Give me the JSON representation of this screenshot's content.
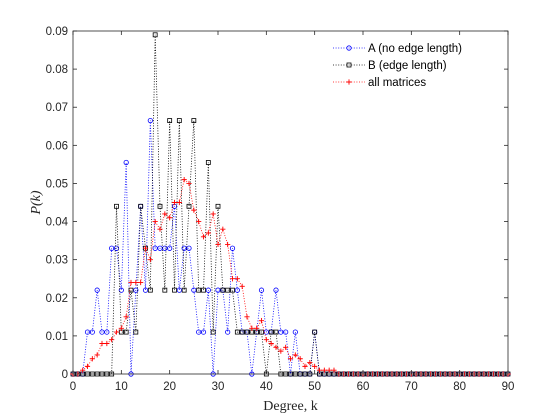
{
  "chart_data": {
    "type": "line",
    "xlabel": "Degree, k",
    "ylabel": "P(k)",
    "xlim": [
      0,
      90
    ],
    "ylim": [
      0,
      0.09
    ],
    "xticks": [
      "0",
      "10",
      "20",
      "30",
      "40",
      "50",
      "60",
      "70",
      "80",
      "90"
    ],
    "yticks": [
      "0",
      "0.01",
      "0.02",
      "0.03",
      "0.04",
      "0.05",
      "0.06",
      "0.07",
      "0.08",
      "0.09"
    ],
    "grid": false,
    "legend_position": "top-right",
    "series": [
      {
        "name": "A (no edge length)",
        "color": "#0000ff",
        "marker": "circle",
        "line_style": "dotted",
        "x": [
          0,
          1,
          2,
          3,
          4,
          5,
          6,
          7,
          8,
          9,
          10,
          11,
          12,
          13,
          14,
          15,
          16,
          17,
          18,
          19,
          20,
          21,
          22,
          23,
          24,
          25,
          26,
          27,
          28,
          29,
          30,
          31,
          32,
          33,
          34,
          35,
          36,
          37,
          38,
          39,
          40,
          41,
          42,
          43,
          44,
          45,
          46,
          47,
          48,
          49,
          50,
          51,
          52,
          53,
          54,
          55,
          56,
          57,
          58,
          59,
          60,
          61,
          62,
          63,
          64,
          65,
          66,
          67,
          68,
          69,
          70,
          71,
          72,
          73,
          74,
          75,
          76,
          77,
          78,
          79,
          80,
          81,
          82,
          83,
          84,
          85,
          86,
          87,
          88,
          89,
          90
        ],
        "y": [
          0,
          0,
          0,
          0.011,
          0.011,
          0.022,
          0.011,
          0.011,
          0.033,
          0.033,
          0.022,
          0.0555,
          0,
          0.022,
          0.044,
          0.022,
          0.0665,
          0.033,
          0.033,
          0.033,
          0.033,
          0.044,
          0.022,
          0.033,
          0.033,
          0.022,
          0.011,
          0.011,
          0.022,
          0,
          0.022,
          0.022,
          0.011,
          0.033,
          0.022,
          0.011,
          0.011,
          0,
          0.011,
          0.022,
          0.011,
          0.011,
          0.022,
          0.011,
          0.011,
          0,
          0.011,
          0,
          0,
          0,
          0.011,
          0,
          0,
          0,
          0,
          0,
          0,
          0,
          0,
          0,
          0,
          0,
          0,
          0,
          0,
          0,
          0,
          0,
          0,
          0,
          0,
          0,
          0,
          0,
          0,
          0,
          0,
          0,
          0,
          0,
          0,
          0,
          0,
          0,
          0,
          0,
          0,
          0,
          0,
          0,
          0
        ]
      },
      {
        "name": "B (edge length)",
        "color": "#000000",
        "marker": "square",
        "line_style": "dotted",
        "x": [
          0,
          1,
          2,
          3,
          4,
          5,
          6,
          7,
          8,
          9,
          10,
          11,
          12,
          13,
          14,
          15,
          16,
          17,
          18,
          19,
          20,
          21,
          22,
          23,
          24,
          25,
          26,
          27,
          28,
          29,
          30,
          31,
          32,
          33,
          34,
          35,
          36,
          37,
          38,
          39,
          40,
          41,
          42,
          43,
          44,
          45,
          46,
          47,
          48,
          49,
          50,
          51,
          52,
          53,
          54,
          55,
          56,
          57,
          58,
          59,
          60,
          61,
          62,
          63,
          64,
          65,
          66,
          67,
          68,
          69,
          70,
          71,
          72,
          73,
          74,
          75,
          76,
          77,
          78,
          79,
          80,
          81,
          82,
          83,
          84,
          85,
          86,
          87,
          88,
          89,
          90
        ],
        "y": [
          0,
          0,
          0,
          0,
          0,
          0,
          0,
          0,
          0,
          0.044,
          0.011,
          0.011,
          0.022,
          0.011,
          0.044,
          0.033,
          0.022,
          0.089,
          0.044,
          0.022,
          0.0665,
          0.022,
          0.0665,
          0.022,
          0.044,
          0.0665,
          0.022,
          0.022,
          0.0555,
          0.011,
          0.044,
          0.022,
          0.022,
          0.022,
          0.011,
          0.011,
          0.011,
          0.011,
          0.011,
          0.011,
          0,
          0.011,
          0.011,
          0,
          0,
          0,
          0,
          0,
          0,
          0,
          0.011,
          0,
          0,
          0,
          0,
          0,
          0,
          0,
          0,
          0,
          0,
          0,
          0,
          0,
          0,
          0,
          0,
          0,
          0,
          0,
          0,
          0,
          0,
          0,
          0,
          0,
          0,
          0,
          0,
          0,
          0,
          0,
          0,
          0,
          0,
          0,
          0,
          0,
          0,
          0,
          0
        ]
      },
      {
        "name": "all matrices",
        "color": "#ff0000",
        "marker": "plus",
        "line_style": "dotted",
        "x": [
          0,
          1,
          2,
          3,
          4,
          5,
          6,
          7,
          8,
          9,
          10,
          11,
          12,
          13,
          14,
          15,
          16,
          17,
          18,
          19,
          20,
          21,
          22,
          23,
          24,
          25,
          26,
          27,
          28,
          29,
          30,
          31,
          32,
          33,
          34,
          35,
          36,
          37,
          38,
          39,
          40,
          41,
          42,
          43,
          44,
          45,
          46,
          47,
          48,
          49,
          50,
          51,
          52,
          53,
          54,
          55,
          56,
          57,
          58,
          59,
          60,
          61,
          62,
          63,
          64,
          65,
          66,
          67,
          68,
          69,
          70,
          71,
          72,
          73,
          74,
          75,
          76,
          77,
          78,
          79,
          80,
          81,
          82,
          83,
          84,
          85,
          86,
          87,
          88,
          89,
          90
        ],
        "y": [
          0,
          0,
          0.001,
          0.002,
          0.004,
          0.005,
          0.008,
          0.008,
          0.009,
          0.011,
          0.012,
          0.015,
          0.024,
          0.024,
          0.024,
          0.033,
          0.03,
          0.04,
          0.038,
          0.042,
          0.041,
          0.045,
          0.045,
          0.051,
          0.05,
          0.043,
          0.04,
          0.036,
          0.037,
          0.042,
          0.034,
          0.038,
          0.034,
          0.025,
          0.025,
          0.023,
          0.015,
          0.012,
          0.012,
          0.014,
          0.009,
          0.008,
          0.007,
          0.006,
          0.007,
          0.004,
          0.005,
          0.004,
          0.002,
          0.003,
          0.002,
          0.001,
          0.001,
          0.001,
          0.001,
          0,
          0,
          0,
          0,
          0,
          0,
          0,
          0,
          0,
          0,
          0,
          0,
          0,
          0,
          0,
          0,
          0,
          0,
          0,
          0,
          0,
          0,
          0,
          0,
          0,
          0,
          0,
          0,
          0,
          0,
          0,
          0,
          0,
          0,
          0,
          0
        ]
      }
    ]
  }
}
